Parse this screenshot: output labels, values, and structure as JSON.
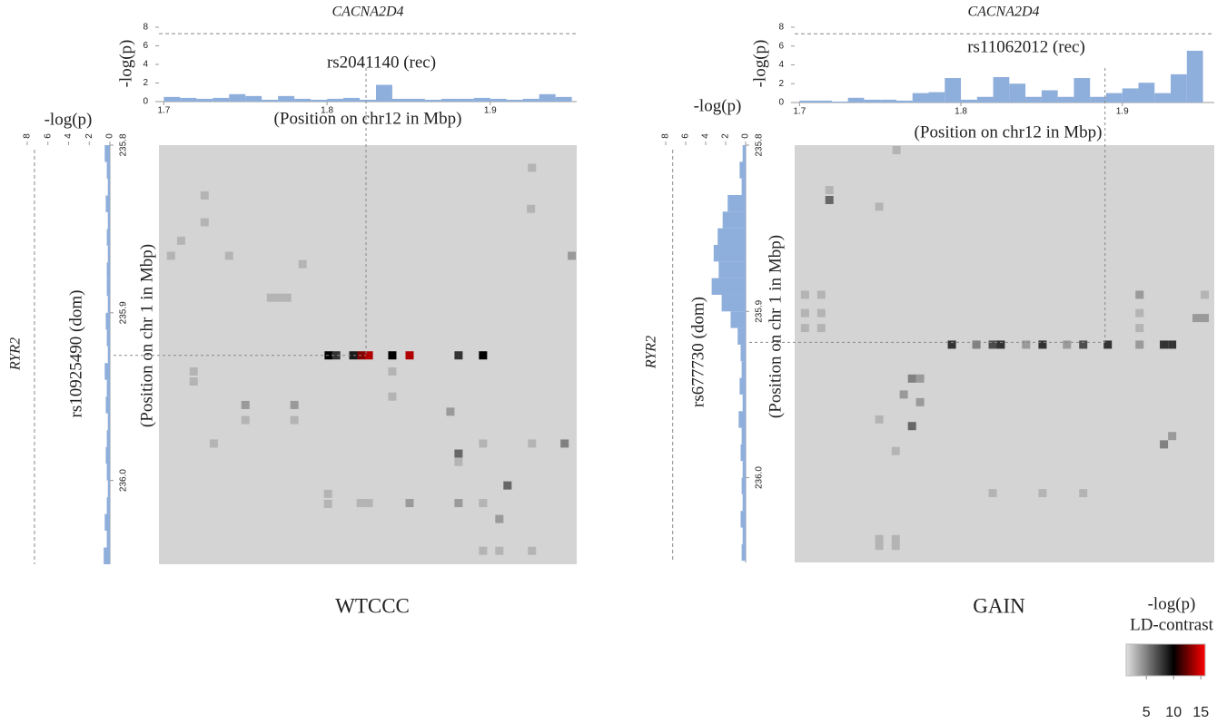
{
  "chart_data": [
    {
      "type": "heatmap",
      "label": "WTCCC",
      "top_histogram": {
        "gene": "CACNA2D4",
        "snp": "rs2041140 (rec)",
        "ylabel": "-log(p)",
        "xlabel": "(Position on chr12 in Mbp)",
        "bins": [
          1.7,
          1.71,
          1.72,
          1.73,
          1.74,
          1.75,
          1.76,
          1.77,
          1.78,
          1.79,
          1.8,
          1.81,
          1.82,
          1.83,
          1.84,
          1.85,
          1.86,
          1.87,
          1.88,
          1.89,
          1.9,
          1.91,
          1.92,
          1.93,
          1.94,
          1.95
        ],
        "values": [
          0.5,
          0.4,
          0.3,
          0.4,
          0.8,
          0.6,
          0.2,
          0.6,
          0.3,
          0.2,
          0.3,
          0.4,
          0.2,
          1.8,
          0.3,
          0.3,
          0.2,
          0.3,
          0.3,
          0.4,
          0.3,
          0.2,
          0.3,
          0.8,
          0.5
        ],
        "xlim": [
          1.697,
          1.953
        ],
        "xticks": [
          1.7,
          1.8,
          1.9
        ],
        "ylim": [
          0,
          8
        ],
        "yticks": [
          0,
          2,
          4,
          6,
          8
        ],
        "threshold": 7.3,
        "color": "#8eaedb"
      },
      "left_histogram": {
        "gene": "RYR2",
        "snp": "rs10925490 (dom)",
        "xlabel": "-log(p)",
        "ylabel": "(Position on chr 1 in Mbp)",
        "bins": [
          235.8,
          235.81,
          235.82,
          235.83,
          235.84,
          235.85,
          235.86,
          235.87,
          235.88,
          235.89,
          235.9,
          235.91,
          235.92,
          235.93,
          235.94,
          235.95,
          235.96,
          235.97,
          235.98,
          235.99,
          236.0,
          236.01,
          236.02,
          236.03,
          236.04,
          236.05
        ],
        "values": [
          0.5,
          0.3,
          0.2,
          0.4,
          0.2,
          0.3,
          0.2,
          0.3,
          0.3,
          0.2,
          0.4,
          0.3,
          0.2,
          0.5,
          0.3,
          0.4,
          0.2,
          0.3,
          0.4,
          0.3,
          0.2,
          0.3,
          0.5,
          0.3,
          0.6
        ],
        "xlim": [
          0,
          8
        ],
        "xticks": [
          0,
          2,
          4,
          6,
          8
        ],
        "ylim": [
          235.8,
          236.05
        ],
        "yticks": [
          235.8,
          235.9,
          {
            "value": 236,
            "label": "236.0"
          }
        ],
        "threshold": 7.3,
        "color": "#8eaedb"
      },
      "snp_x": 1.8239,
      "snp_y": 235.9254,
      "background": "#d4d4d4",
      "cells": {
        "x": [
          1.9256,
          1.725,
          1.725,
          1.925,
          1.7106,
          1.7044,
          1.74,
          1.785,
          1.95,
          1.7656,
          1.7706,
          1.7756,
          1.801,
          1.8056,
          1.8161,
          1.8211,
          1.8256,
          1.84,
          1.8506,
          1.8806,
          1.8956,
          1.7183,
          1.7183,
          1.84,
          1.84,
          1.75,
          1.75,
          1.78,
          1.78,
          1.7306,
          1.8756,
          1.8806,
          1.8806,
          1.8956,
          1.9256,
          1.9456,
          1.9106,
          1.8006,
          1.8006,
          1.8206,
          1.8256,
          1.8506,
          1.8806,
          1.8956,
          1.9056,
          1.8956,
          1.9056,
          1.9256
        ],
        "y": [
          235.8135,
          235.83,
          235.846,
          235.838,
          235.857,
          235.866,
          235.866,
          235.871,
          235.866,
          235.891,
          235.891,
          235.891,
          235.9254,
          235.9254,
          235.9254,
          235.9254,
          235.9254,
          235.9254,
          235.9254,
          235.9254,
          235.9254,
          235.935,
          235.941,
          235.935,
          235.95,
          235.955,
          235.964,
          235.955,
          235.964,
          235.978,
          235.959,
          235.984,
          235.989,
          235.978,
          235.978,
          235.978,
          236.003,
          236.008,
          236.014,
          236.0135,
          236.0135,
          236.0135,
          236.0135,
          236.0135,
          236.023,
          236.042,
          236.042,
          236.042
        ],
        "values": [
          3,
          3,
          3,
          3,
          3,
          3,
          3,
          3,
          4,
          3,
          3,
          3,
          10,
          8,
          9,
          13,
          14,
          10,
          14,
          8,
          10,
          3,
          3,
          3,
          3,
          4,
          3,
          4,
          3,
          3,
          4,
          6,
          3,
          3,
          3,
          5,
          6,
          3,
          3,
          3,
          3,
          4,
          4,
          3,
          4,
          3,
          3,
          3
        ]
      }
    },
    {
      "type": "heatmap",
      "label": "GAIN",
      "top_histogram": {
        "gene": "CACNA2D4",
        "snp": "rs11062012 (rec)",
        "ylabel": "-log(p)",
        "xlabel": "(Position on chr12 in Mbp)",
        "bins": [
          1.7,
          1.71,
          1.72,
          1.73,
          1.74,
          1.75,
          1.76,
          1.77,
          1.78,
          1.79,
          1.8,
          1.81,
          1.82,
          1.83,
          1.84,
          1.85,
          1.86,
          1.87,
          1.88,
          1.89,
          1.9,
          1.91,
          1.92,
          1.93,
          1.94,
          1.95
        ],
        "values": [
          0.2,
          0.2,
          0.1,
          0.5,
          0.3,
          0.3,
          0.2,
          1.0,
          1.1,
          2.6,
          0.3,
          0.6,
          2.7,
          2.0,
          0.6,
          1.3,
          0.6,
          2.6,
          0.6,
          1.0,
          1.5,
          2.1,
          1.0,
          3.0,
          5.5
        ],
        "xlim": [
          1.697,
          1.957
        ],
        "xticks": [
          1.7,
          1.8,
          1.9
        ],
        "ylim": [
          0,
          8
        ],
        "yticks": [
          0,
          2,
          4,
          6,
          8
        ],
        "threshold": 7.3,
        "color": "#8eaedb"
      },
      "left_histogram": {
        "gene": "RYR2",
        "snp": "rs677730 (dom)",
        "xlabel": "-log(p)",
        "ylabel": "(Position on chr 1 in Mbp)",
        "bins": [
          235.8,
          235.81,
          235.82,
          235.83,
          235.84,
          235.85,
          235.86,
          235.87,
          235.88,
          235.89,
          235.9,
          235.91,
          235.92,
          235.93,
          235.94,
          235.95,
          235.96,
          235.97,
          235.98,
          235.99,
          236.0,
          236.01,
          236.02,
          236.03,
          236.04,
          236.05
        ],
        "values": [
          0.3,
          0.6,
          0.4,
          1.8,
          2.3,
          2.8,
          3.2,
          2.7,
          3.4,
          2.4,
          1.5,
          0.8,
          0.5,
          0.4,
          0.6,
          0.3,
          0.7,
          0.4,
          0.5,
          0.3,
          0.4,
          0.3,
          0.5,
          0.3,
          0.4
        ],
        "xlim": [
          0,
          8
        ],
        "xticks": [
          0,
          2,
          4,
          6,
          8
        ],
        "ylim": [
          235.8,
          236.051
        ],
        "yticks": [
          235.8,
          235.9,
          {
            "value": 236,
            "label": "236.0"
          }
        ],
        "threshold": 7.3,
        "color": "#8eaedb"
      },
      "snp_x": 1.8893,
      "snp_y": 235.9186,
      "background": "#d4d4d4",
      "cells": {
        "x": [
          1.7601,
          1.7185,
          1.7185,
          1.7494,
          1.7034,
          1.7034,
          1.7135,
          1.7135,
          1.7135,
          1.7034,
          1.9107,
          1.9107,
          1.9107,
          1.9511,
          1.9511,
          1.946,
          1.7944,
          1.8096,
          1.8197,
          1.8247,
          1.8404,
          1.8506,
          1.8657,
          1.8758,
          1.891,
          1.9107,
          1.9258,
          1.9309,
          1.7697,
          1.7747,
          1.7646,
          1.7747,
          1.7697,
          1.7494,
          1.7596,
          1.9309,
          1.9258,
          1.8197,
          1.8506,
          1.8758,
          1.7494,
          1.7494,
          1.7596,
          1.7596
        ],
        "y": [
          235.803,
          235.827,
          235.833,
          235.837,
          235.89,
          235.901,
          235.89,
          235.901,
          235.91,
          235.91,
          235.89,
          235.901,
          235.91,
          235.89,
          235.904,
          235.904,
          235.92,
          235.92,
          235.92,
          235.92,
          235.92,
          235.92,
          235.92,
          235.92,
          235.92,
          235.92,
          235.92,
          235.92,
          235.9404,
          235.9404,
          235.95,
          235.9546,
          235.969,
          235.965,
          235.984,
          235.975,
          235.98,
          236.0093,
          236.0093,
          236.0093,
          236.037,
          236.041,
          236.037,
          236.041
        ],
        "values": [
          3,
          3,
          6,
          3,
          3,
          3,
          3,
          3,
          3,
          3,
          4,
          3,
          3,
          3,
          4,
          4,
          8,
          5,
          7,
          8,
          4,
          8,
          4,
          7,
          8,
          4,
          8,
          8,
          5,
          4,
          4,
          4,
          6,
          3,
          3,
          4,
          5,
          3,
          3,
          3,
          3,
          3,
          3,
          3
        ]
      }
    }
  ],
  "colorbar": {
    "title": "-log(p)",
    "subtitle": "LD-contrast",
    "range": [
      1.3,
      15.8
    ],
    "ticks": [
      5,
      10,
      15
    ],
    "stops": [
      {
        "value": 1.3,
        "color": "#e0e0e0"
      },
      {
        "value": 10,
        "color": "#000000"
      },
      {
        "value": 15.8,
        "color": "#ff0000"
      }
    ]
  }
}
